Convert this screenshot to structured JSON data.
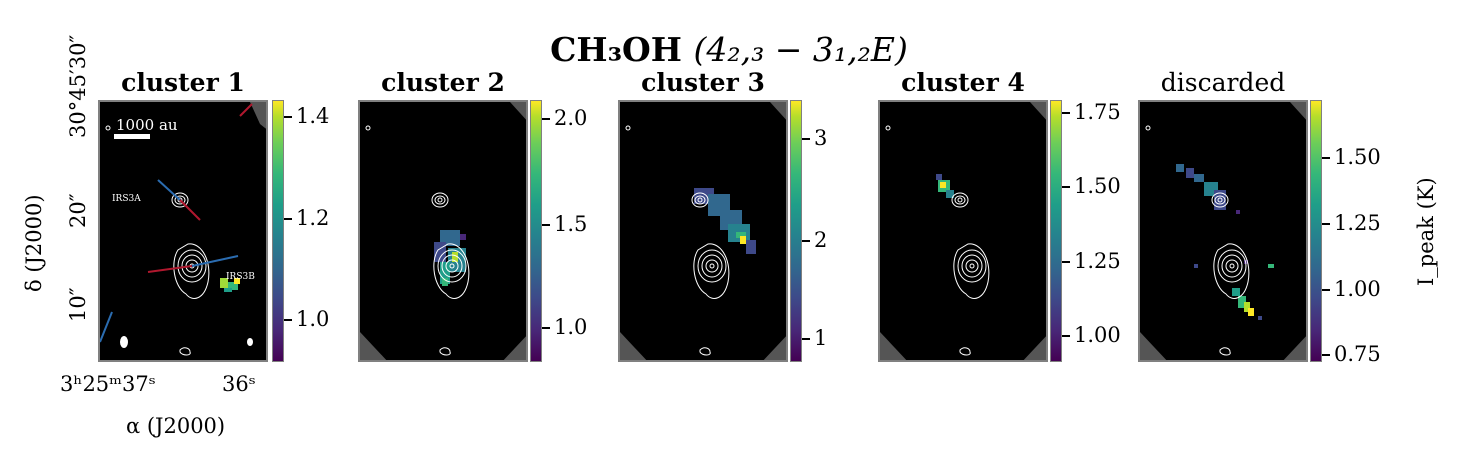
{
  "figure": {
    "title": "CH₃OH",
    "title_transition": "(4₂,₃ − 3₁,₂E)",
    "y_axis_label": "δ (J2000)",
    "x_axis_label": "α (J2000)",
    "y_ticks": [
      "30°45′30″",
      "20″",
      "10″"
    ],
    "x_ticks": [
      "3ʰ25ᵐ37ˢ",
      "36ˢ"
    ],
    "colorbar_label": "I_peak (K)",
    "scale_bar_label": "1000 au",
    "source_labels": [
      "IRS3A",
      "IRS3B"
    ]
  },
  "panels": [
    {
      "title": "cluster 1",
      "colorbar_ticks": [
        "1.4",
        "1.2",
        "1.0"
      ]
    },
    {
      "title": "cluster 2",
      "colorbar_ticks": [
        "2.0",
        "1.5",
        "1.0"
      ]
    },
    {
      "title": "cluster 3",
      "colorbar_ticks": [
        "3",
        "2",
        "1"
      ]
    },
    {
      "title": "cluster 4",
      "colorbar_ticks": [
        "1.75",
        "1.50",
        "1.25",
        "1.00"
      ]
    },
    {
      "title": "discarded",
      "colorbar_ticks": [
        "1.50",
        "1.25",
        "1.00",
        "0.75"
      ]
    }
  ],
  "colors": {
    "panel_bg": "#000000",
    "frame": "#808080",
    "contour": "#ffffff",
    "outflow_blue": "#2b6cb0",
    "outflow_red": "#b0182e",
    "colormap": "viridis"
  }
}
